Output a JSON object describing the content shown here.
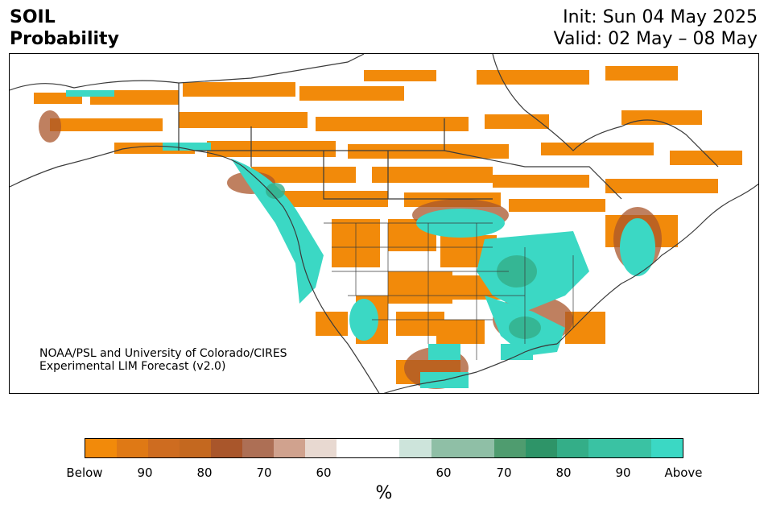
{
  "header": {
    "variable": "SOIL",
    "subtitle": "Probability",
    "init": "Init: Sun 04 May 2025",
    "valid": "Valid: 02 May – 08 May"
  },
  "credit": {
    "line1": "NOAA/PSL and University of Colorado/CIRES",
    "line2": "Experimental LIM Forecast (v2.0)"
  },
  "colorbar": {
    "unit": "%",
    "colors": [
      "#f28a0a",
      "#df7915",
      "#ce6c20",
      "#c4681f",
      "#a9562b",
      "#ad6f55",
      "#d0a28e",
      "#e8d9d1",
      "#ffffff",
      "#ffffff",
      "#cde4db",
      "#8fbfa6",
      "#8fbfa6",
      "#4f9c6f",
      "#2e9468",
      "#34ae88",
      "#3ac2a3",
      "#3ac2a3",
      "#3bd8c4"
    ],
    "tick_labels": [
      "Below",
      "90",
      "80",
      "70",
      "60",
      "60",
      "70",
      "80",
      "90",
      "Above"
    ]
  },
  "map": {
    "region": "North America",
    "colors": {
      "below": "#f28a0a",
      "above": "#3bd8c4",
      "above_mid": "#34ae88",
      "brown": "#a9562b",
      "coast": "#3a3a3a"
    }
  }
}
